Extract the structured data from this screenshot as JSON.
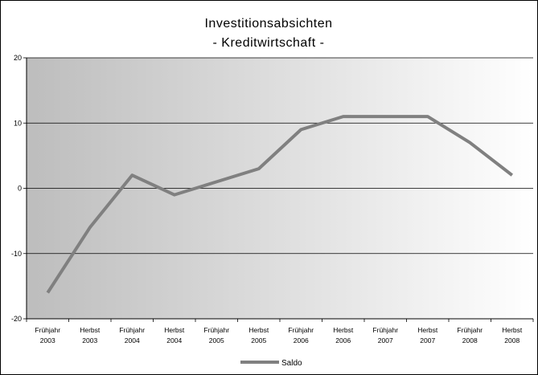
{
  "chart_data": {
    "type": "line",
    "title_line1": "Investitionsabsichten",
    "title_line2": "- Kreditwirtschaft -",
    "xlabel": "",
    "ylabel": "",
    "categories": [
      [
        "Frühjahr",
        "2003"
      ],
      [
        "Herbst",
        "2003"
      ],
      [
        "Frühjahr",
        "2004"
      ],
      [
        "Herbst",
        "2004"
      ],
      [
        "Frühjahr",
        "2005"
      ],
      [
        "Herbst",
        "2005"
      ],
      [
        "Frühjahr",
        "2006"
      ],
      [
        "Herbst",
        "2006"
      ],
      [
        "Frühjahr",
        "2007"
      ],
      [
        "Herbst",
        "2007"
      ],
      [
        "Frühjahr",
        "2008"
      ],
      [
        "Herbst",
        "2008"
      ]
    ],
    "series": [
      {
        "name": "Saldo",
        "color": "#808080",
        "values": [
          -16,
          -6,
          2,
          -1,
          1,
          3,
          9,
          11,
          11,
          11,
          7,
          2
        ]
      }
    ],
    "ylim": [
      -20,
      20
    ],
    "yticks": [
      -20,
      -10,
      0,
      10,
      20
    ],
    "grid": true,
    "legend_position": "bottom",
    "plot_background": "gradient from gray (left) to white (right)"
  }
}
